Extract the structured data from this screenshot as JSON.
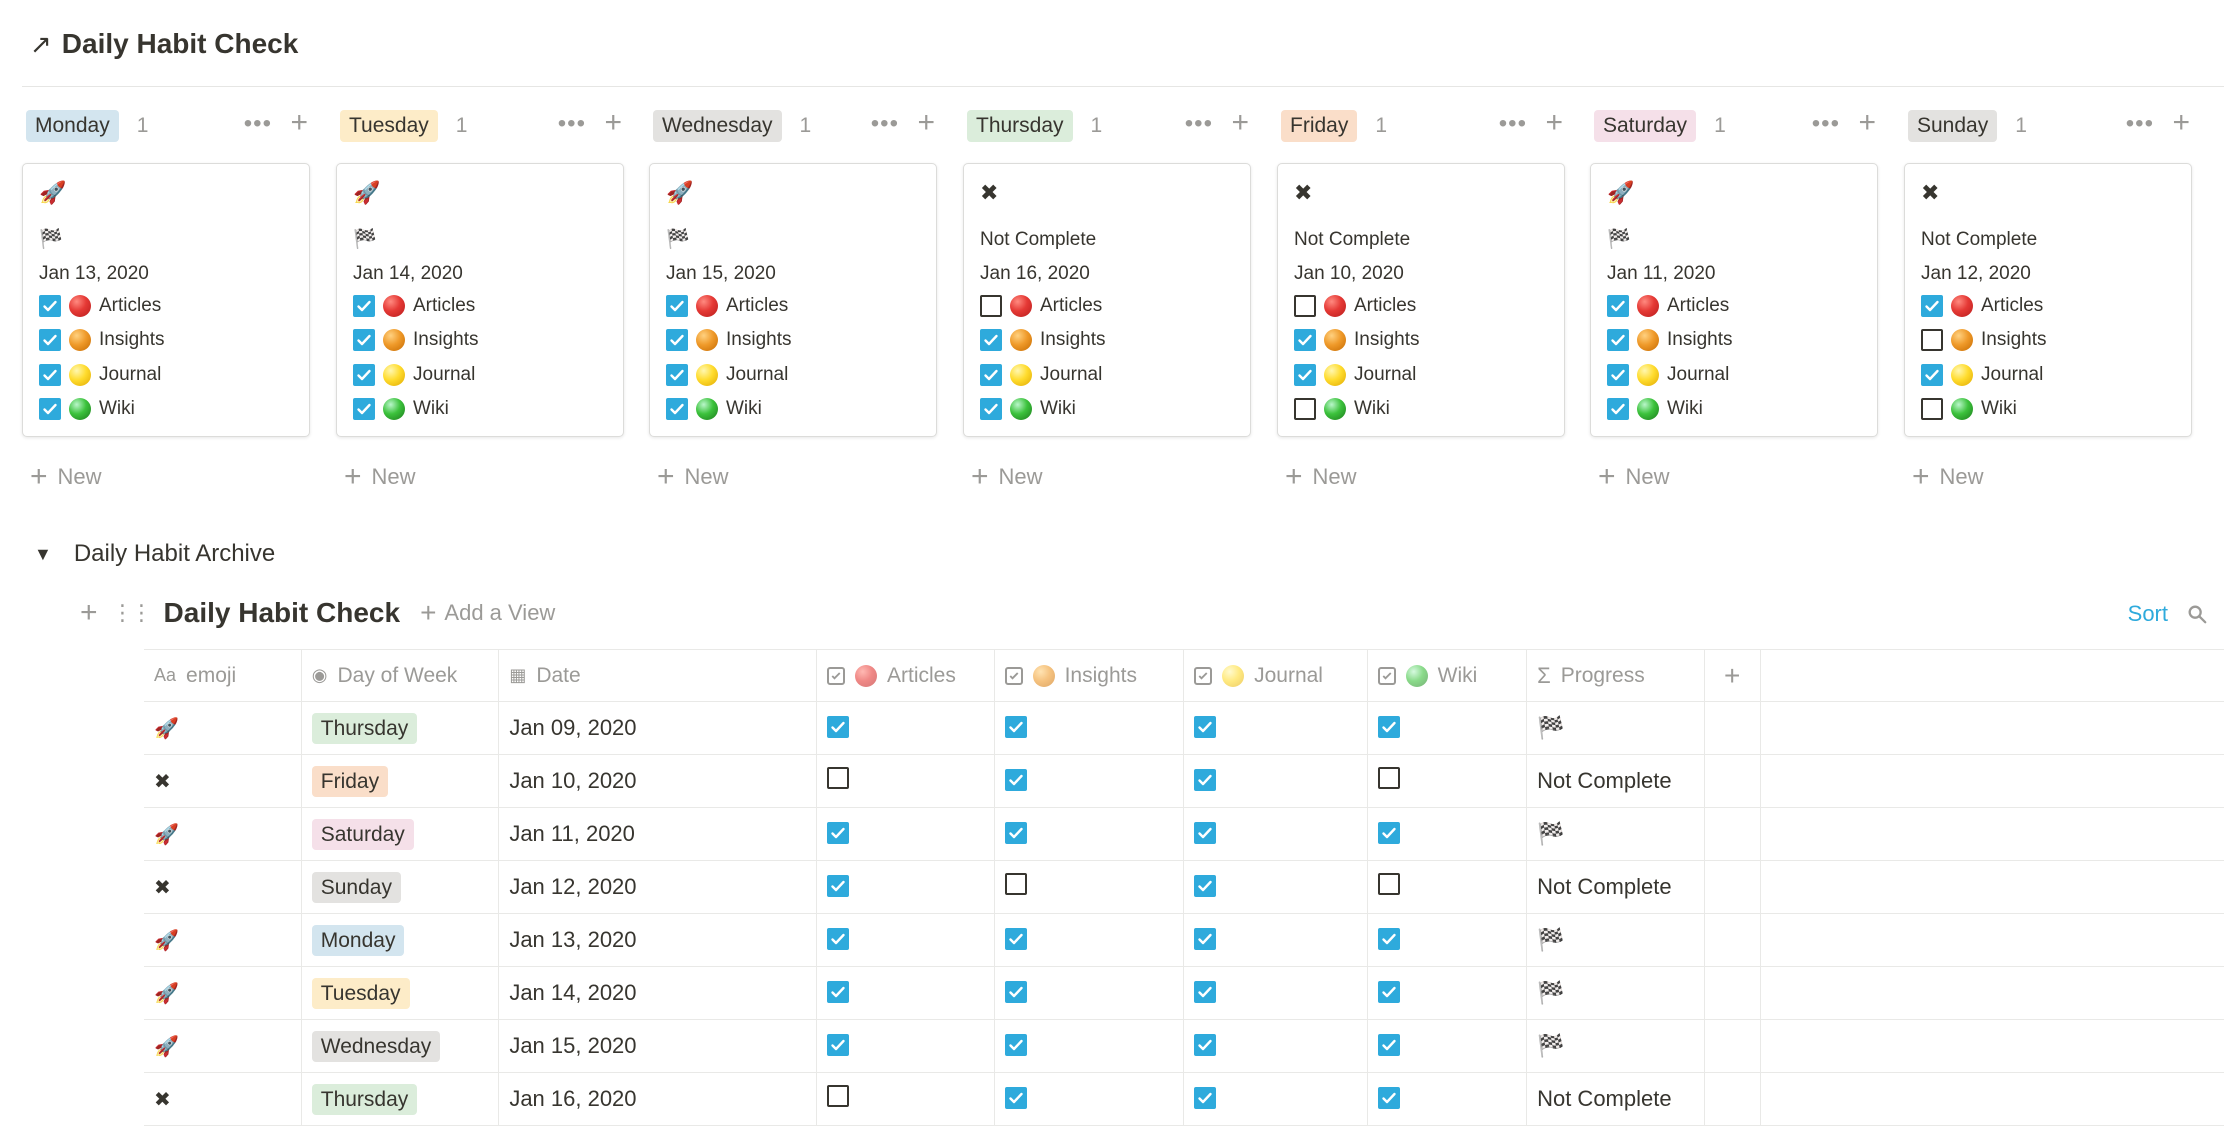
{
  "board": {
    "title_icon": "↗",
    "title": "Daily Habit Check",
    "new_label": "New",
    "columns": [
      {
        "day": "Monday",
        "count": "1",
        "color": "#d3e5ef",
        "card": {
          "emoji": "🚀",
          "progress": "🏁",
          "date": "Jan 13, 2020",
          "props": [
            {
              "label": "Articles",
              "checked": true,
              "dot": "red"
            },
            {
              "label": "Insights",
              "checked": true,
              "dot": "orange"
            },
            {
              "label": "Journal",
              "checked": true,
              "dot": "yellow"
            },
            {
              "label": "Wiki",
              "checked": true,
              "dot": "green"
            }
          ]
        }
      },
      {
        "day": "Tuesday",
        "count": "1",
        "color": "#fdecc8",
        "card": {
          "emoji": "🚀",
          "progress": "🏁",
          "date": "Jan 14, 2020",
          "props": [
            {
              "label": "Articles",
              "checked": true,
              "dot": "red"
            },
            {
              "label": "Insights",
              "checked": true,
              "dot": "orange"
            },
            {
              "label": "Journal",
              "checked": true,
              "dot": "yellow"
            },
            {
              "label": "Wiki",
              "checked": true,
              "dot": "green"
            }
          ]
        }
      },
      {
        "day": "Wednesday",
        "count": "1",
        "color": "#e3e2e0",
        "card": {
          "emoji": "🚀",
          "progress": "🏁",
          "date": "Jan 15, 2020",
          "props": [
            {
              "label": "Articles",
              "checked": true,
              "dot": "red"
            },
            {
              "label": "Insights",
              "checked": true,
              "dot": "orange"
            },
            {
              "label": "Journal",
              "checked": true,
              "dot": "yellow"
            },
            {
              "label": "Wiki",
              "checked": true,
              "dot": "green"
            }
          ]
        }
      },
      {
        "day": "Thursday",
        "count": "1",
        "color": "#dbeddb",
        "card": {
          "emoji": "✖",
          "progress": "Not Complete",
          "date": "Jan 16, 2020",
          "props": [
            {
              "label": "Articles",
              "checked": false,
              "dot": "red"
            },
            {
              "label": "Insights",
              "checked": true,
              "dot": "orange"
            },
            {
              "label": "Journal",
              "checked": true,
              "dot": "yellow"
            },
            {
              "label": "Wiki",
              "checked": true,
              "dot": "green"
            }
          ]
        }
      },
      {
        "day": "Friday",
        "count": "1",
        "color": "#fadec9",
        "card": {
          "emoji": "✖",
          "progress": "Not Complete",
          "date": "Jan 10, 2020",
          "props": [
            {
              "label": "Articles",
              "checked": false,
              "dot": "red"
            },
            {
              "label": "Insights",
              "checked": true,
              "dot": "orange"
            },
            {
              "label": "Journal",
              "checked": true,
              "dot": "yellow"
            },
            {
              "label": "Wiki",
              "checked": false,
              "dot": "green"
            }
          ]
        }
      },
      {
        "day": "Saturday",
        "count": "1",
        "color": "#f5e0e9",
        "card": {
          "emoji": "🚀",
          "progress": "🏁",
          "date": "Jan 11, 2020",
          "props": [
            {
              "label": "Articles",
              "checked": true,
              "dot": "red"
            },
            {
              "label": "Insights",
              "checked": true,
              "dot": "orange"
            },
            {
              "label": "Journal",
              "checked": true,
              "dot": "yellow"
            },
            {
              "label": "Wiki",
              "checked": true,
              "dot": "green"
            }
          ]
        }
      },
      {
        "day": "Sunday",
        "count": "1",
        "color": "#e3e2e0",
        "card": {
          "emoji": "✖",
          "progress": "Not Complete",
          "date": "Jan 12, 2020",
          "props": [
            {
              "label": "Articles",
              "checked": true,
              "dot": "red"
            },
            {
              "label": "Insights",
              "checked": false,
              "dot": "orange"
            },
            {
              "label": "Journal",
              "checked": true,
              "dot": "yellow"
            },
            {
              "label": "Wiki",
              "checked": false,
              "dot": "green"
            }
          ]
        }
      }
    ]
  },
  "archive": {
    "toggle_label": "Daily Habit Archive",
    "table_title": "Daily Habit Check",
    "add_view": "Add a View",
    "sort": "Sort",
    "columns": {
      "emoji": "emoji",
      "emoji_icon": "Aa",
      "day": "Day of Week",
      "date": "Date",
      "articles": "Articles",
      "insights": "Insights",
      "journal": "Journal",
      "wiki": "Wiki",
      "progress": "Progress",
      "progress_icon": "Σ"
    },
    "rows": [
      {
        "emoji": "🚀",
        "day": "Thursday",
        "color": "#dbeddb",
        "date": "Jan 09, 2020",
        "articles": true,
        "insights": true,
        "journal": true,
        "wiki": true,
        "progress": "🏁"
      },
      {
        "emoji": "✖",
        "day": "Friday",
        "color": "#fadec9",
        "date": "Jan 10, 2020",
        "articles": false,
        "insights": true,
        "journal": true,
        "wiki": false,
        "progress": "Not Complete"
      },
      {
        "emoji": "🚀",
        "day": "Saturday",
        "color": "#f5e0e9",
        "date": "Jan 11, 2020",
        "articles": true,
        "insights": true,
        "journal": true,
        "wiki": true,
        "progress": "🏁"
      },
      {
        "emoji": "✖",
        "day": "Sunday",
        "color": "#e3e2e0",
        "date": "Jan 12, 2020",
        "articles": true,
        "insights": false,
        "journal": true,
        "wiki": false,
        "progress": "Not Complete"
      },
      {
        "emoji": "🚀",
        "day": "Monday",
        "color": "#d3e5ef",
        "date": "Jan 13, 2020",
        "articles": true,
        "insights": true,
        "journal": true,
        "wiki": true,
        "progress": "🏁"
      },
      {
        "emoji": "🚀",
        "day": "Tuesday",
        "color": "#fdecc8",
        "date": "Jan 14, 2020",
        "articles": true,
        "insights": true,
        "journal": true,
        "wiki": true,
        "progress": "🏁"
      },
      {
        "emoji": "🚀",
        "day": "Wednesday",
        "color": "#e3e2e0",
        "date": "Jan 15, 2020",
        "articles": true,
        "insights": true,
        "journal": true,
        "wiki": true,
        "progress": "🏁"
      },
      {
        "emoji": "✖",
        "day": "Thursday",
        "color": "#dbeddb",
        "date": "Jan 16, 2020",
        "articles": false,
        "insights": true,
        "journal": true,
        "wiki": true,
        "progress": "Not Complete"
      }
    ]
  }
}
